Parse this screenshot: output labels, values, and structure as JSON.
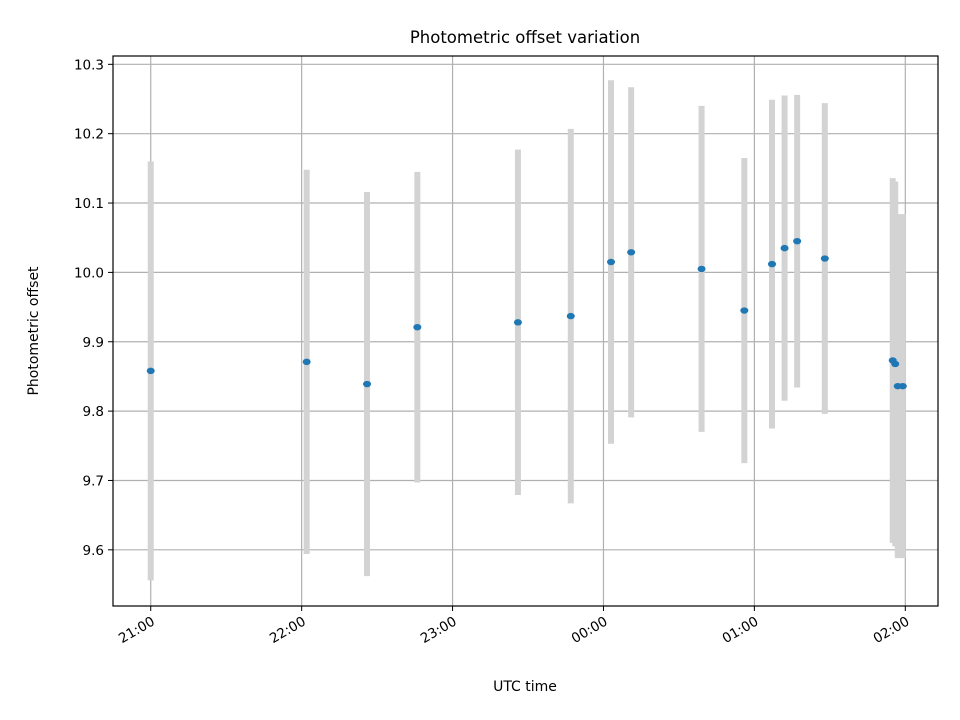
{
  "chart_data": {
    "type": "scatter",
    "title": "Photometric offset variation",
    "xlabel": "UTC time",
    "ylabel": "Photometric offset",
    "x_unit": "UTC hh:mm",
    "xlim": [
      "20:45",
      "02:13"
    ],
    "ylim": [
      9.519,
      10.312
    ],
    "grid": true,
    "x_tick_values": [
      "21:00",
      "22:00",
      "23:00",
      "00:00",
      "01:00",
      "02:00"
    ],
    "x_tick_labels": [
      "21:00",
      "22:00",
      "23:00",
      "00:00",
      "01:00",
      "02:00"
    ],
    "y_tick_values": [
      9.6,
      9.7,
      9.8,
      9.9,
      10.0,
      10.1,
      10.2,
      10.3
    ],
    "y_tick_labels": [
      "9.6",
      "9.7",
      "9.8",
      "9.9",
      "10.0",
      "10.1",
      "10.2",
      "10.3"
    ],
    "colors": {
      "marker": "#1f77b4",
      "errorbar": "#d3d3d3",
      "grid": "#b0b0b0",
      "frame": "#000000"
    },
    "points": [
      {
        "x": "21:00",
        "y": 9.858,
        "err": 0.302
      },
      {
        "x": "22:02",
        "y": 9.871,
        "err": 0.277
      },
      {
        "x": "22:26",
        "y": 9.839,
        "err": 0.277
      },
      {
        "x": "22:46",
        "y": 9.921,
        "err": 0.224
      },
      {
        "x": "23:26",
        "y": 9.928,
        "err": 0.249
      },
      {
        "x": "23:47",
        "y": 9.937,
        "err": 0.27
      },
      {
        "x": "00:03",
        "y": 10.015,
        "err": 0.262
      },
      {
        "x": "00:11",
        "y": 10.029,
        "err": 0.238
      },
      {
        "x": "00:39",
        "y": 10.005,
        "err": 0.235
      },
      {
        "x": "00:56",
        "y": 9.945,
        "err": 0.22
      },
      {
        "x": "01:07",
        "y": 10.012,
        "err": 0.237
      },
      {
        "x": "01:12",
        "y": 10.035,
        "err": 0.22
      },
      {
        "x": "01:17",
        "y": 10.045,
        "err": 0.211
      },
      {
        "x": "01:28",
        "y": 10.02,
        "err": 0.224
      },
      {
        "x": "01:55",
        "y": 9.873,
        "err": 0.263
      },
      {
        "x": "01:56",
        "y": 9.868,
        "err": 0.263
      },
      {
        "x": "01:57",
        "y": 9.836,
        "err": 0.248
      },
      {
        "x": "01:59",
        "y": 9.836,
        "err": 0.248
      }
    ]
  }
}
